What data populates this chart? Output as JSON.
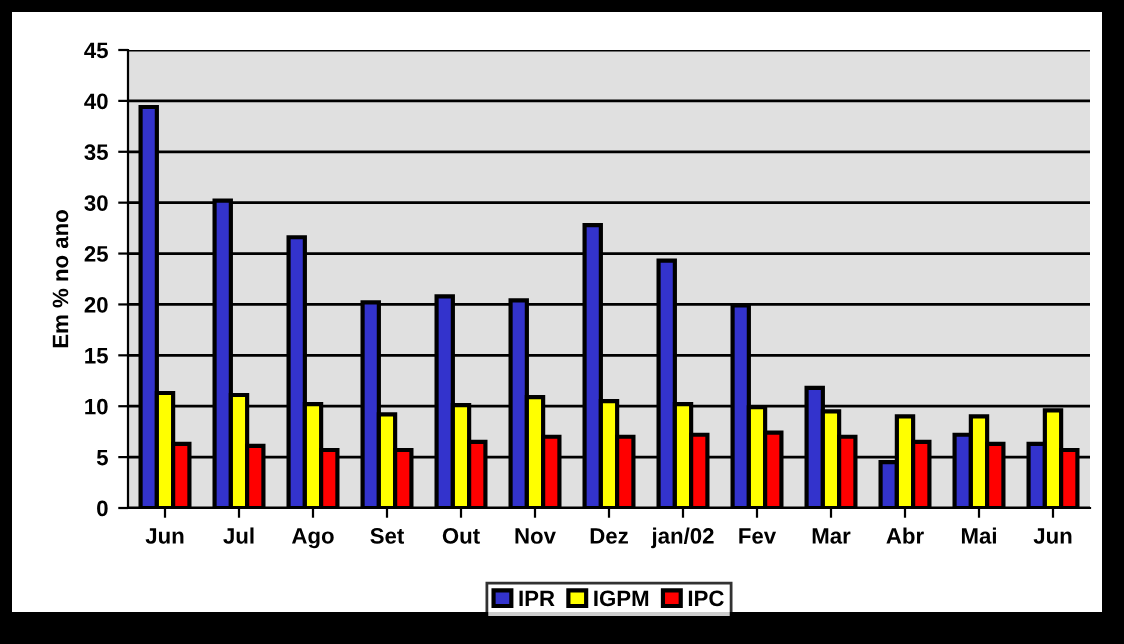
{
  "chart_data": {
    "type": "bar",
    "ylabel": "Em % no ano",
    "categories": [
      "Jun",
      "Jul",
      "Ago",
      "Set",
      "Out",
      "Nov",
      "Dez",
      "jan/02",
      "Fev",
      "Mar",
      "Abr",
      "Mai",
      "Jun"
    ],
    "series": [
      {
        "name": "IPR",
        "color": "#3333cc",
        "values": [
          39.4,
          30.2,
          26.6,
          20.2,
          20.8,
          20.4,
          27.8,
          24.3,
          19.9,
          11.8,
          4.5,
          7.2,
          6.3
        ]
      },
      {
        "name": "IGPM",
        "color": "#ffff00",
        "values": [
          11.3,
          11.1,
          10.2,
          9.2,
          10.1,
          10.9,
          10.5,
          10.2,
          9.9,
          9.5,
          9.0,
          9.0,
          9.6
        ]
      },
      {
        "name": "IPC",
        "color": "#ff0000",
        "values": [
          6.3,
          6.1,
          5.7,
          5.7,
          6.5,
          7.0,
          7.0,
          7.2,
          7.4,
          7.0,
          6.5,
          6.3,
          5.7
        ]
      }
    ],
    "ylim": [
      0,
      45
    ],
    "yticks": [
      0,
      5,
      10,
      15,
      20,
      25,
      30,
      35,
      40,
      45
    ],
    "grid": "y",
    "legend": "bottom"
  }
}
